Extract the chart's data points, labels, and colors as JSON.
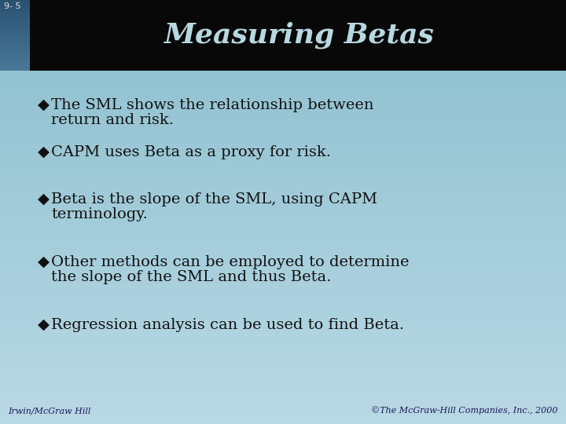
{
  "title": "Measuring Betas",
  "slide_number": "9- 5",
  "title_color": "#B8D8E0",
  "title_bg_color": "#080808",
  "bg_color_top": "#8BBECE",
  "bg_color_bottom": "#A8D4DC",
  "left_bar_top": "#2A5070",
  "left_bar_bottom": "#4A7898",
  "bullet_char": "◆",
  "text_color": "#111111",
  "footer_left": "Irwin/McGraw Hill",
  "footer_right": "©The McGraw-Hill Companies, Inc., 2000",
  "footer_color": "#1A1A5A",
  "bullet_points": [
    [
      "The SML shows the relationship between",
      "return and risk."
    ],
    [
      "CAPM uses Beta as a proxy for risk."
    ],
    [
      "Beta is the slope of the SML, using CAPM",
      "terminology."
    ],
    [
      "Other methods can be employed to determine",
      "the slope of the SML and thus Beta."
    ],
    [
      "Regression analysis can be used to find Beta."
    ]
  ],
  "title_fontsize": 26,
  "bullet_fontsize": 14,
  "slide_num_fontsize": 8,
  "footer_fontsize": 8,
  "title_bar_height": 90,
  "left_bar_width": 38
}
